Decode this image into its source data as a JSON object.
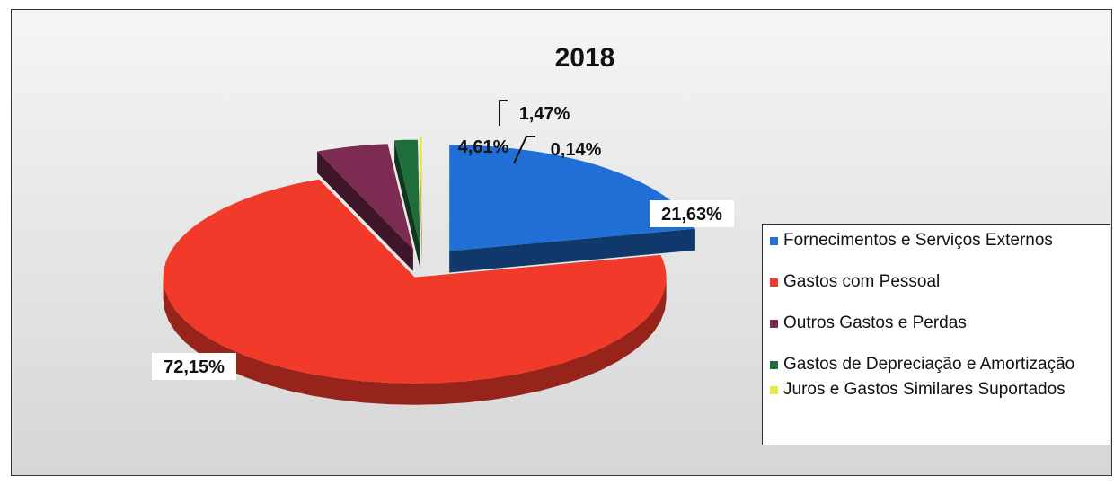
{
  "chart_data": {
    "type": "pie",
    "title": "2018",
    "style": "3d-exploded",
    "slices": [
      {
        "label": "Fornecimentos e Serviços Externos",
        "value": 21.63,
        "value_label": "21,63%",
        "color": "#1f6fd6"
      },
      {
        "label": "Gastos com Pessoal",
        "value": 72.15,
        "value_label": "72,15%",
        "color": "#f23a2a"
      },
      {
        "label": "Outros Gastos e Perdas",
        "value": 4.61,
        "value_label": "4,61%",
        "color": "#7d2b52"
      },
      {
        "label": "Gastos de Depreciação e Amortização",
        "value": 1.47,
        "value_label": "1,47%",
        "color": "#1f6e3a"
      },
      {
        "label": "Juros e Gastos Similares Suportados",
        "value": 0.14,
        "value_label": "0,14%",
        "color": "#e8e84a"
      }
    ],
    "legend_position": "right"
  }
}
